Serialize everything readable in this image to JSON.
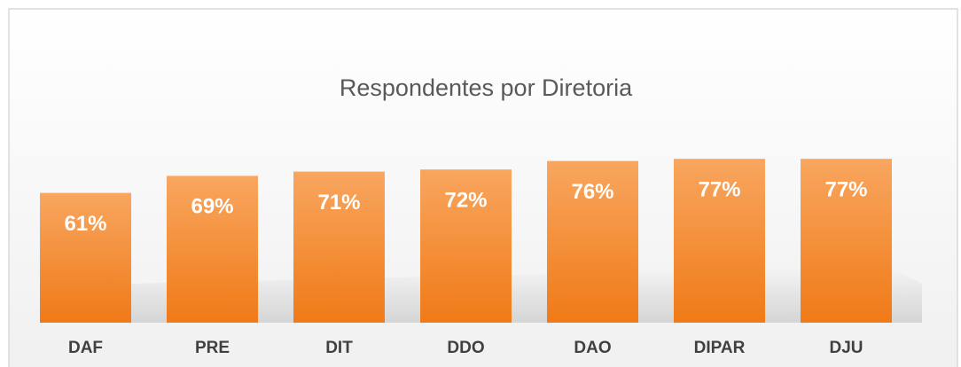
{
  "chart_data": {
    "type": "bar",
    "title": "Respondentes por Diretoria",
    "categories": [
      "DAF",
      "PRE",
      "DIT",
      "DDO",
      "DAO",
      "DIPAR",
      "DJU"
    ],
    "values": [
      61,
      69,
      71,
      72,
      76,
      77,
      77
    ],
    "value_labels": [
      "61%",
      "69%",
      "71%",
      "72%",
      "76%",
      "77%",
      "77%"
    ],
    "color": "#f58a2e",
    "ylim": [
      0,
      100
    ]
  }
}
